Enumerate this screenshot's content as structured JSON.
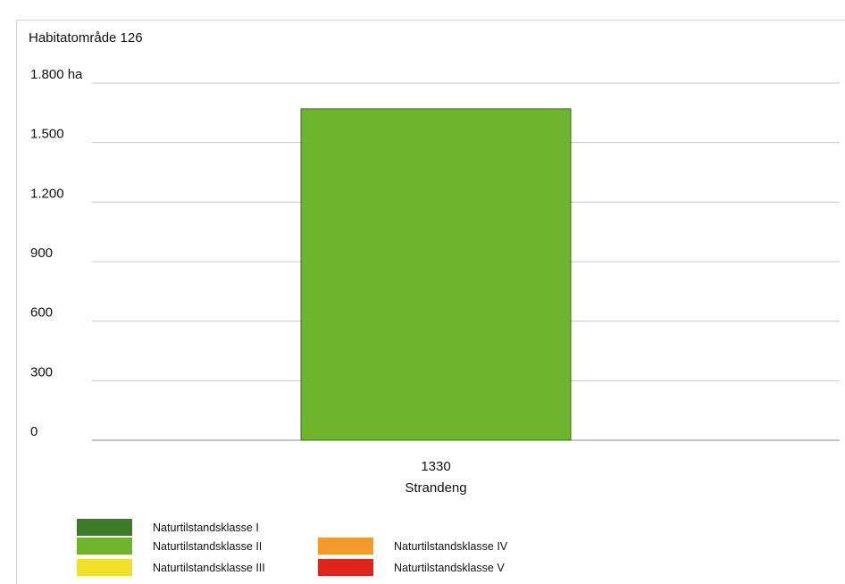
{
  "chart_data": {
    "type": "bar",
    "title": "Habitatområde 126",
    "ylabel": "",
    "xlabel": "",
    "y_unit": "ha",
    "ylim": [
      0,
      1800
    ],
    "yticks": [
      {
        "value": 0,
        "label": "0"
      },
      {
        "value": 300,
        "label": "300"
      },
      {
        "value": 600,
        "label": "600"
      },
      {
        "value": 900,
        "label": "900"
      },
      {
        "value": 1200,
        "label": "1.200"
      },
      {
        "value": 1500,
        "label": "1.500"
      },
      {
        "value": 1800,
        "label": "1.800 ha"
      }
    ],
    "categories": [
      {
        "code": "1330",
        "name": "Strandeng"
      }
    ],
    "series": [
      {
        "name": "Naturtilstandsklasse I",
        "color": "#3c7a25",
        "values": [
          0
        ]
      },
      {
        "name": "Naturtilstandsklasse II",
        "color": "#6fb52c",
        "values": [
          1670
        ]
      },
      {
        "name": "Naturtilstandsklasse III",
        "color": "#f0e02a",
        "values": [
          0
        ]
      },
      {
        "name": "Naturtilstandsklasse IV",
        "color": "#f39a2b",
        "values": [
          0
        ]
      },
      {
        "name": "Naturtilstandsklasse V",
        "color": "#e0231b",
        "values": [
          0
        ]
      }
    ],
    "grid": true,
    "legend_position": "bottom"
  }
}
